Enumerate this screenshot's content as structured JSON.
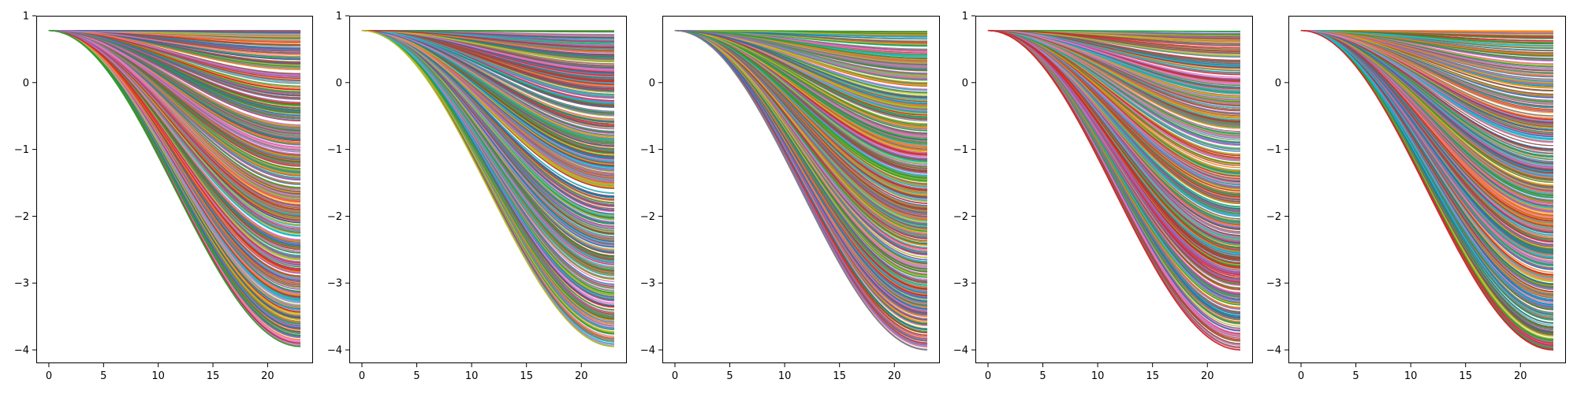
{
  "chart_data": [
    {
      "type": "line",
      "title": "",
      "xlabel": "",
      "ylabel": "",
      "xlim": [
        -1.15,
        24.15
      ],
      "ylim": [
        -4.2,
        1.0
      ],
      "xticks": [
        0,
        5,
        10,
        15,
        20
      ],
      "xtick_labels": [
        "0",
        "5",
        "10",
        "15",
        "20"
      ],
      "yticks": [
        1,
        0,
        -1,
        -2,
        -3,
        -4
      ],
      "ytick_labels": [
        "1",
        "0",
        "−1",
        "−2",
        "−3",
        "−4"
      ],
      "grid": false,
      "legend": "none",
      "x": [
        0,
        23
      ],
      "series_count": 600,
      "series_start": 0.78,
      "series_end_range": [
        -3.95,
        0.78
      ],
      "lowest_series_end": -3.95,
      "lowest_series_color": "#2ca02c"
    },
    {
      "type": "line",
      "title": "",
      "xlabel": "",
      "ylabel": "",
      "xlim": [
        -1.15,
        24.15
      ],
      "ylim": [
        -4.2,
        1.0
      ],
      "xticks": [
        0,
        5,
        10,
        15,
        20
      ],
      "xtick_labels": [
        "0",
        "5",
        "10",
        "15",
        "20"
      ],
      "yticks": [
        1,
        0,
        -1,
        -2,
        -3,
        -4
      ],
      "ytick_labels": [
        "1",
        "0",
        "−1",
        "−2",
        "−3",
        "−4"
      ],
      "grid": false,
      "legend": "none",
      "x": [
        0,
        23
      ],
      "series_count": 600,
      "series_start": 0.78,
      "series_end_range": [
        -3.95,
        0.78
      ],
      "lowest_series_end": -3.95,
      "lowest_series_color": "#bcbd22"
    },
    {
      "type": "line",
      "title": "",
      "xlabel": "",
      "ylabel": "",
      "xlim": [
        -1.15,
        24.15
      ],
      "ylim": [
        -4.2,
        1.0
      ],
      "xticks": [
        0,
        5,
        10,
        15,
        20
      ],
      "xtick_labels": [
        "0",
        "5",
        "10",
        "15",
        "20"
      ],
      "yticks": [
        0,
        -1,
        -2,
        -3,
        -4
      ],
      "ytick_labels": [
        "0",
        "−1",
        "−2",
        "−3",
        "−4"
      ],
      "grid": false,
      "legend": "none",
      "x": [
        0,
        23
      ],
      "series_count": 600,
      "series_start": 0.78,
      "series_end_range": [
        -4.0,
        0.78
      ],
      "lowest_series_end": -4.0,
      "lowest_series_color": "#7f7f7f"
    },
    {
      "type": "line",
      "title": "",
      "xlabel": "",
      "ylabel": "",
      "xlim": [
        -1.15,
        24.15
      ],
      "ylim": [
        -4.2,
        1.0
      ],
      "xticks": [
        0,
        5,
        10,
        15,
        20
      ],
      "xtick_labels": [
        "0",
        "5",
        "10",
        "15",
        "20"
      ],
      "yticks": [
        1,
        0,
        -1,
        -2,
        -3,
        -4
      ],
      "ytick_labels": [
        "1",
        "0",
        "−1",
        "−2",
        "−3",
        "−4"
      ],
      "grid": false,
      "legend": "none",
      "x": [
        0,
        23
      ],
      "series_count": 600,
      "series_start": 0.78,
      "series_end_range": [
        -4.0,
        0.78
      ],
      "lowest_series_end": -4.0,
      "lowest_series_color": "#d62728"
    },
    {
      "type": "line",
      "title": "",
      "xlabel": "",
      "ylabel": "",
      "xlim": [
        -1.15,
        24.15
      ],
      "ylim": [
        -4.2,
        1.0
      ],
      "xticks": [
        0,
        5,
        10,
        15,
        20
      ],
      "xtick_labels": [
        "0",
        "5",
        "10",
        "15",
        "20"
      ],
      "yticks": [
        0,
        -1,
        -2,
        -3,
        -4
      ],
      "ytick_labels": [
        "0",
        "−1",
        "−2",
        "−3",
        "−4"
      ],
      "grid": false,
      "legend": "none",
      "x": [
        0,
        23
      ],
      "series_count": 600,
      "series_start": 0.78,
      "series_end_range": [
        -4.0,
        0.78
      ],
      "lowest_series_end": -4.0,
      "lowest_series_color": "#d62728"
    }
  ],
  "colors": {
    "palette": [
      "#1f77b4",
      "#ff7f0e",
      "#2ca02c",
      "#d62728",
      "#9467bd",
      "#8c564b",
      "#e377c2",
      "#7f7f7f",
      "#bcbd22",
      "#17becf"
    ]
  }
}
